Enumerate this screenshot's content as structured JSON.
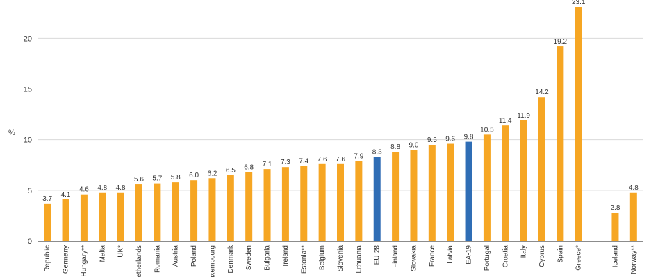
{
  "chart_data": {
    "type": "bar",
    "ylabel": "%",
    "ylim": [
      0,
      23.1
    ],
    "yticks": [
      "0",
      "5",
      "10",
      "15",
      "20"
    ],
    "grid": true,
    "colors": {
      "default": "#F6A623",
      "highlight": "#2F6DB5"
    },
    "series": [
      {
        "values": [
          3.7,
          4.1,
          4.6,
          4.8,
          4.8,
          5.6,
          5.7,
          5.8,
          6.0,
          6.2,
          6.5,
          6.8,
          7.1,
          7.3,
          7.4,
          7.6,
          7.6,
          7.9,
          8.3,
          8.8,
          9.0,
          9.5,
          9.6,
          9.8,
          10.5,
          11.4,
          11.9,
          14.2,
          19.2,
          23.1,
          2.8,
          4.8
        ],
        "labels": [
          "3.7",
          "4.1",
          "4.6",
          "4.8",
          "4.8",
          "5.6",
          "5.7",
          "5.8",
          "6.0",
          "6.2",
          "6.5",
          "6.8",
          "7.1",
          "7.3",
          "7.4",
          "7.6",
          "7.6",
          "7.9",
          "8.3",
          "8.8",
          "9.0",
          "9.5",
          "9.6",
          "9.8",
          "10.5",
          "11.4",
          "11.9",
          "14.2",
          "19.2",
          "23.1",
          "2.8",
          "4.8"
        ]
      }
    ],
    "categories": [
      "Republic",
      "Germany",
      "Hungary**",
      "Malta",
      "UK*",
      "Netherlands",
      "Romania",
      "Austria",
      "Poland",
      "Luxembourg",
      "Denmark",
      "Sweden",
      "Bulgaria",
      "Ireland",
      "Estonia**",
      "Belgium",
      "Slovenia",
      "Lithuania",
      "EU-28",
      "Finland",
      "Slovakia",
      "France",
      "Latvia",
      "EA-19",
      "Portugal",
      "Croatia",
      "Italy",
      "Cyprus",
      "Spain",
      "Greece*",
      "Iceland",
      "Norway**"
    ],
    "highlight": [
      "EU-28",
      "EA-19"
    ],
    "group_gap_before": "Iceland"
  }
}
